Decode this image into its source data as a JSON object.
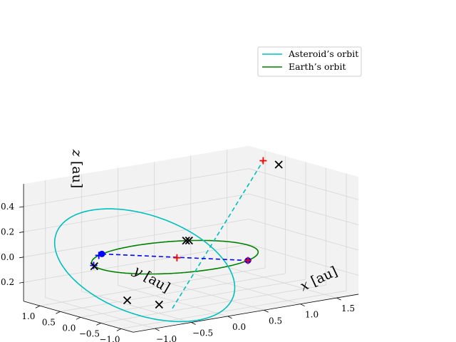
{
  "chart_data": {
    "type": "3d-line",
    "title": "",
    "xlabel": "$x$ [au]",
    "ylabel": "$y$ [au]",
    "zlabel": "$z$ [au]",
    "xlabel_text": {
      "var": "x",
      "unit": "[au]"
    },
    "ylabel_text": {
      "var": "y",
      "unit": "[au]"
    },
    "zlabel_text": {
      "var": "z",
      "unit": "[au]"
    },
    "xlim": [
      -1.3,
      1.8
    ],
    "ylim": [
      -1.3,
      1.4
    ],
    "zlim": [
      -0.35,
      0.58
    ],
    "xticks": [
      -1.0,
      -0.5,
      0.0,
      0.5,
      1.0,
      1.5
    ],
    "yticks": [
      -1.0,
      -0.5,
      0.0,
      0.5,
      1.0
    ],
    "zticks": [
      -0.2,
      0.0,
      0.2,
      0.4
    ],
    "xtick_labels": [
      "−1.0",
      "−0.5",
      "0.0",
      "0.5",
      "1.0",
      "1.5"
    ],
    "ytick_labels": [
      "−1.0",
      "−0.5",
      "0.0",
      "0.5",
      "1.0"
    ],
    "ztick_labels": [
      "−0.2",
      "0.0",
      "0.2",
      "0.4"
    ],
    "grid": true,
    "legend_position": "top-right",
    "series": [
      {
        "name": "Asteroid's orbit",
        "label": "Asteroid’s orbit",
        "color": "#00bfbf",
        "orbit": {
          "a": 1.18,
          "e": 0.45,
          "inclination_deg": 32,
          "ascending_node_deg": 122,
          "perihelion_arg_deg": 160
        }
      },
      {
        "name": "Earth's orbit",
        "label": "Earth’s orbit",
        "color": "#008000",
        "orbit": {
          "a": 1.0,
          "e": 0.0,
          "inclination_deg": 0,
          "ascending_node_deg": 0,
          "perihelion_arg_deg": 0
        }
      }
    ],
    "line_of_apsides": {
      "color": "#00bfbf",
      "style": "dashed",
      "from": [
        -0.37,
        -0.6,
        -0.315
      ],
      "to": [
        1.55,
        0.6,
        0.56
      ]
    },
    "line_of_nodes": {
      "color": "#0000ff",
      "style": "dashed",
      "from": [
        -0.53,
        0.85,
        0.0
      ],
      "to": [
        0.53,
        -0.85,
        0.0
      ]
    },
    "points": [
      {
        "kind": "node",
        "marker": "circle",
        "color": "#0000ff",
        "xyz": [
          -0.53,
          0.85,
          0.0
        ]
      },
      {
        "kind": "node",
        "marker": "circle",
        "color": "#0000ff",
        "xyz": [
          0.53,
          -0.85,
          0.0
        ]
      },
      {
        "kind": "apsis",
        "marker": "plus",
        "color": "#ff0000",
        "xyz": [
          1.55,
          0.6,
          0.56
        ]
      },
      {
        "kind": "apsis",
        "marker": "plus",
        "color": "#ff0000",
        "xyz": [
          0.0,
          -0.05,
          0.0
        ]
      },
      {
        "kind": "apsis",
        "marker": "plus",
        "color": "#ff0000",
        "xyz": [
          0.53,
          -0.85,
          0.0
        ]
      },
      {
        "kind": "intersection",
        "marker": "plus",
        "color": "#0000ff",
        "xyz": [
          -0.6,
          0.8,
          0.0
        ]
      },
      {
        "kind": "intersection",
        "marker": "plus",
        "color": "#0000ff",
        "xyz": [
          -0.95,
          0.3,
          0.0
        ]
      },
      {
        "kind": "close-approach",
        "marker": "x",
        "color": "#000000",
        "xyz": [
          1.68,
          0.45,
          0.53
        ]
      },
      {
        "kind": "close-approach",
        "marker": "x",
        "color": "#000000",
        "xyz": [
          0.6,
          0.8,
          0.0
        ]
      },
      {
        "kind": "close-approach",
        "marker": "x",
        "color": "#000000",
        "xyz": [
          0.63,
          0.78,
          0.0
        ]
      },
      {
        "kind": "close-approach",
        "marker": "x",
        "color": "#000000",
        "xyz": [
          -0.97,
          0.25,
          0.0
        ]
      },
      {
        "kind": "close-approach",
        "marker": "x",
        "color": "#000000",
        "xyz": [
          -0.88,
          -0.4,
          -0.22
        ]
      },
      {
        "kind": "close-approach",
        "marker": "x",
        "color": "#000000",
        "xyz": [
          -0.62,
          -0.72,
          -0.25
        ]
      }
    ]
  },
  "colors": {
    "pane": "#f2f2f2",
    "grid": "#d6d6d6",
    "axis": "#000000",
    "legend_border": "#cccccc"
  }
}
